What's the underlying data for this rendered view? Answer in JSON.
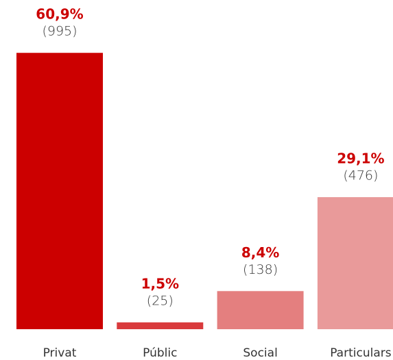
{
  "chart_data": {
    "type": "bar",
    "categories": [
      "Privat",
      "Públic",
      "Social",
      "Particulars"
    ],
    "values": [
      60.9,
      1.5,
      8.4,
      29.1
    ],
    "value_labels": [
      "60,9%",
      "1,5%",
      "8,4%",
      "29,1%"
    ],
    "counts": [
      995,
      25,
      138,
      476
    ],
    "count_labels": [
      "(995)",
      "(25)",
      "(138)",
      "(476)"
    ],
    "colors": [
      "#cc0000",
      "#d93a3c",
      "#e47f7f",
      "#e99a9a"
    ]
  }
}
